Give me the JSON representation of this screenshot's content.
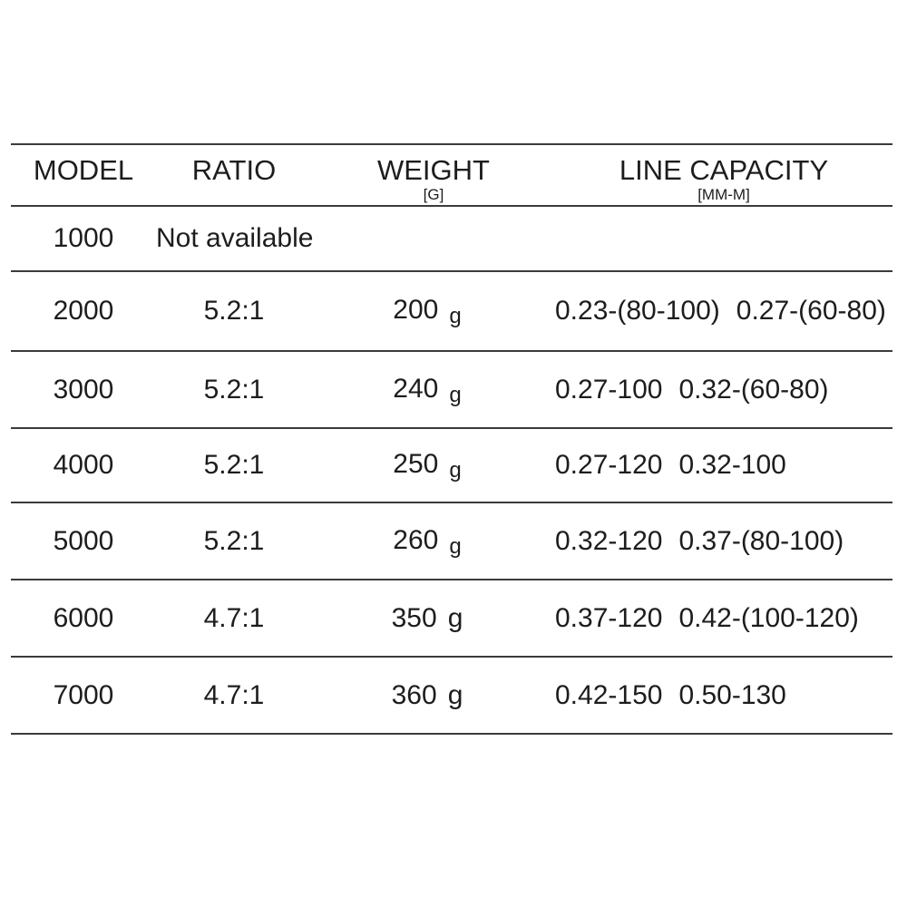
{
  "style": {
    "background": "#ffffff",
    "text_color": "#1d1d1d",
    "rule_color": "#3b3b3b"
  },
  "table": {
    "headers": {
      "model": "MODEL",
      "ratio": "RATIO",
      "weight": "WEIGHT",
      "weight_unit": "[G]",
      "capacity": "LINE CAPACITY",
      "capacity_unit": "[MM-M]"
    },
    "rows": [
      {
        "model": "1000",
        "note": "Not available",
        "ratio": "",
        "weight": "",
        "weight_unit": "",
        "unit_sub": false,
        "capacity": []
      },
      {
        "model": "2000",
        "ratio": "5.2:1",
        "weight": "200",
        "weight_unit": "g",
        "unit_sub": true,
        "capacity": [
          "0.23-(80-100)",
          "0.27-(60-80)"
        ]
      },
      {
        "model": "3000",
        "ratio": "5.2:1",
        "weight": "240",
        "weight_unit": "g",
        "unit_sub": true,
        "capacity": [
          "0.27-100",
          "0.32-(60-80)"
        ]
      },
      {
        "model": "4000",
        "ratio": "5.2:1",
        "weight": "250",
        "weight_unit": "g",
        "unit_sub": true,
        "capacity": [
          "0.27-120",
          "0.32-100"
        ]
      },
      {
        "model": "5000",
        "ratio": "5.2:1",
        "weight": "260",
        "weight_unit": "g",
        "unit_sub": true,
        "capacity": [
          "0.32-120",
          "0.37-(80-100)"
        ]
      },
      {
        "model": "6000",
        "ratio": "4.7:1",
        "weight": "350",
        "weight_unit": "g",
        "unit_sub": false,
        "capacity": [
          "0.37-120",
          "0.42-(100-120)"
        ]
      },
      {
        "model": "7000",
        "ratio": "4.7:1",
        "weight": "360",
        "weight_unit": "g",
        "unit_sub": false,
        "capacity": [
          "0.42-150",
          "0.50-130"
        ]
      }
    ]
  }
}
